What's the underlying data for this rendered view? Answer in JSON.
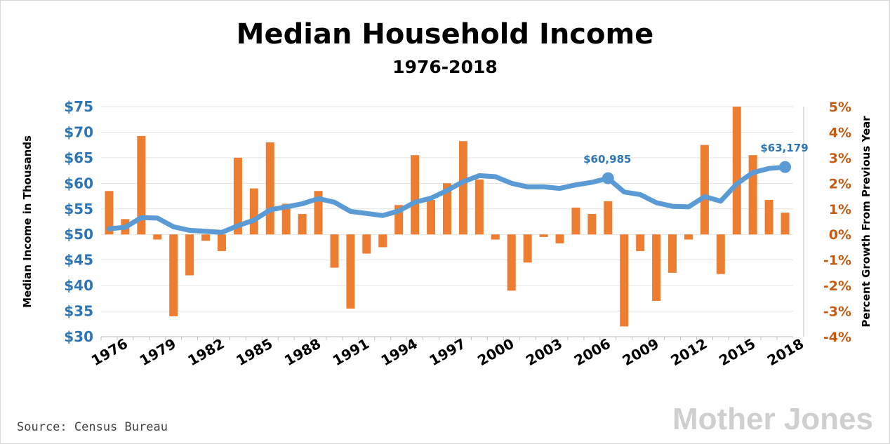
{
  "chart_data": {
    "type": "bar+line",
    "title": "Median Household Income",
    "subtitle": "1976-2018",
    "years": [
      1976,
      1977,
      1978,
      1979,
      1980,
      1981,
      1982,
      1983,
      1984,
      1985,
      1986,
      1987,
      1988,
      1989,
      1990,
      1991,
      1992,
      1993,
      1994,
      1995,
      1996,
      1997,
      1998,
      1999,
      2000,
      2001,
      2002,
      2003,
      2004,
      2005,
      2006,
      2007,
      2008,
      2009,
      2010,
      2011,
      2012,
      2013,
      2014,
      2015,
      2016,
      2017,
      2018
    ],
    "xtick_labels": [
      "1976",
      "1979",
      "1982",
      "1985",
      "1988",
      "1991",
      "1994",
      "1997",
      "2000",
      "2003",
      "2006",
      "2009",
      "2012",
      "2015",
      "2018"
    ],
    "xtick_years": [
      1976,
      1979,
      1982,
      1985,
      1988,
      1991,
      1994,
      1997,
      2000,
      2003,
      2006,
      2009,
      2012,
      2015,
      2018
    ],
    "series": [
      {
        "name": "Median Income in Thousands",
        "axis": "left",
        "type": "line",
        "color": "#5b9bd5",
        "values": [
          51.1,
          51.4,
          53.3,
          53.2,
          51.5,
          50.8,
          50.6,
          50.4,
          51.7,
          52.8,
          54.8,
          55.4,
          56.0,
          57.0,
          56.3,
          54.5,
          54.1,
          53.7,
          54.6,
          56.3,
          57.1,
          58.6,
          60.3,
          61.5,
          61.3,
          60.0,
          59.3,
          59.3,
          59.0,
          59.7,
          60.2,
          60.985,
          58.3,
          57.8,
          56.2,
          55.5,
          55.4,
          57.4,
          56.5,
          59.9,
          62.1,
          62.9,
          63.179
        ]
      },
      {
        "name": "Percent Growth From Previous Year",
        "axis": "right",
        "type": "bar",
        "color": "#ed7d31",
        "values": [
          1.7,
          0.6,
          3.85,
          -0.2,
          -3.2,
          -1.6,
          -0.25,
          -0.65,
          3.0,
          1.8,
          3.6,
          1.2,
          0.8,
          1.7,
          -1.3,
          -2.9,
          -0.75,
          -0.5,
          1.15,
          3.1,
          1.35,
          2.0,
          3.65,
          2.15,
          -0.2,
          -2.2,
          -1.1,
          -0.1,
          -0.35,
          1.05,
          0.8,
          1.3,
          -3.6,
          -0.65,
          -2.6,
          -1.5,
          -0.2,
          3.5,
          -1.55,
          5.0,
          3.1,
          1.35,
          0.85
        ]
      }
    ],
    "y_left": {
      "label": "Median Income in Thousands",
      "min": 30,
      "max": 75,
      "ticks": [
        30,
        35,
        40,
        45,
        50,
        55,
        60,
        65,
        70,
        75
      ],
      "tick_labels": [
        "$30",
        "$35",
        "$40",
        "$45",
        "$50",
        "$55",
        "$60",
        "$65",
        "$70",
        "$75"
      ],
      "color": "#2e75b6"
    },
    "y_right": {
      "label": "Percent Growth From Previous Year",
      "min": -4,
      "max": 5,
      "ticks": [
        -4,
        -3,
        -2,
        -1,
        0,
        1,
        2,
        3,
        4,
        5
      ],
      "tick_labels": [
        "-4%",
        "-3%",
        "-2%",
        "-1%",
        "0%",
        "1%",
        "2%",
        "3%",
        "4%",
        "5%"
      ],
      "color": "#c55a11"
    },
    "callouts": [
      {
        "year": 2007,
        "value": 60.985,
        "label": "$60,985"
      },
      {
        "year": 2018,
        "value": 63.179,
        "label": "$63,179"
      }
    ],
    "grid": true
  },
  "source": "Source: Census Bureau",
  "logo": "Mother Jones"
}
